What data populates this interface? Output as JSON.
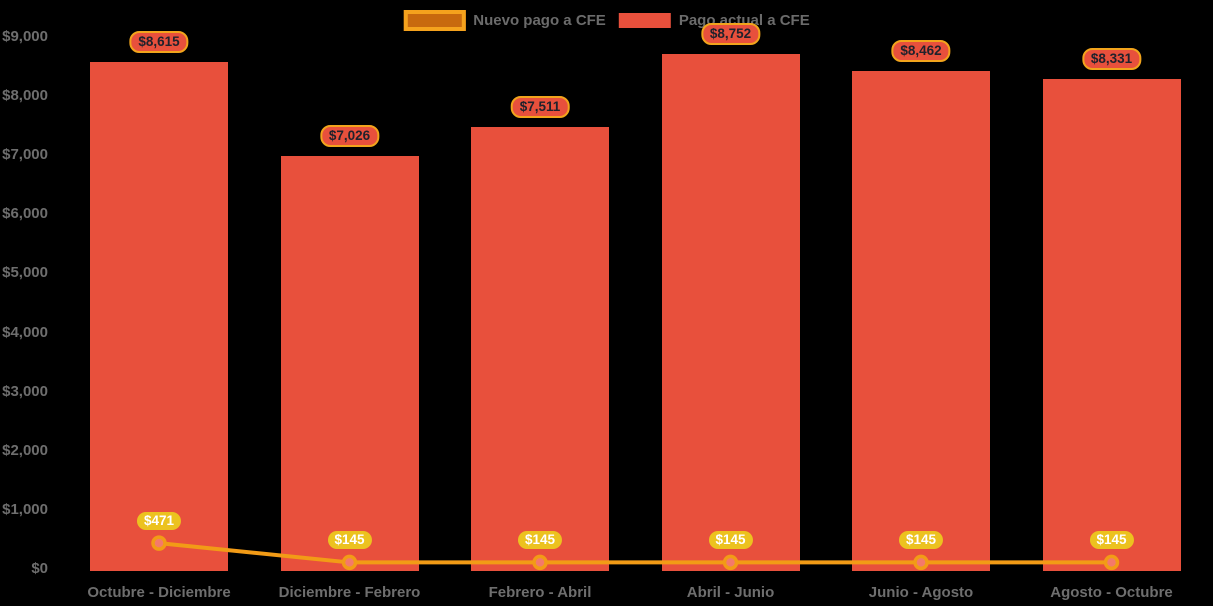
{
  "chart_data": {
    "type": "bar",
    "title": "",
    "categories": [
      "Octubre - Diciembre",
      "Diciembre - Febrero",
      "Febrero - Abril",
      "Abril - Junio",
      "Junio - Agosto",
      "Agosto - Octubre"
    ],
    "series": [
      {
        "name": "Nuevo pago a CFE",
        "type": "line",
        "values": [
          471,
          145,
          145,
          145,
          145,
          145
        ],
        "labels": [
          "$471",
          "$145",
          "$145",
          "$145",
          "$145",
          "$145"
        ],
        "color": "#F29B16",
        "marker_fill": "#F4796B",
        "marker_stroke": "#F29B16",
        "label_bg": "#ECC21F",
        "label_text_color": "#FFFFFF"
      },
      {
        "name": "Pago actual a CFE",
        "type": "bar",
        "values": [
          8615,
          7026,
          7511,
          8752,
          8462,
          8331
        ],
        "labels": [
          "$8,615",
          "$7,026",
          "$7,511",
          "$8,752",
          "$8,462",
          "$8,331"
        ],
        "color": "#E8503C",
        "label_bg": "#E8503C",
        "label_border": "#F2A41C",
        "label_text_color": "#20222C"
      }
    ],
    "y_axis": {
      "min": 0,
      "max": 9000,
      "ticks": [
        {
          "value": 9000,
          "label": "$9,000"
        },
        {
          "value": 8000,
          "label": "$8,000"
        },
        {
          "value": 7000,
          "label": "$7,000"
        },
        {
          "value": 6000,
          "label": "$6,000"
        },
        {
          "value": 5000,
          "label": "$5,000"
        },
        {
          "value": 4000,
          "label": "$4,000"
        },
        {
          "value": 3000,
          "label": "$3,000"
        },
        {
          "value": 2000,
          "label": "$2,000"
        },
        {
          "value": 1000,
          "label": "$1,000"
        },
        {
          "value": 0,
          "label": "$0"
        }
      ]
    },
    "legend_position": "top-center",
    "grid": false,
    "colors": {
      "background": "#000000",
      "axis_text": "#6E6E6E",
      "legend_text": "#6B6B6B",
      "legend_line_swatch_fill": "#C8690E",
      "legend_line_swatch_border": "#F5A21D",
      "legend_bar_swatch_fill": "#E8503C"
    }
  }
}
